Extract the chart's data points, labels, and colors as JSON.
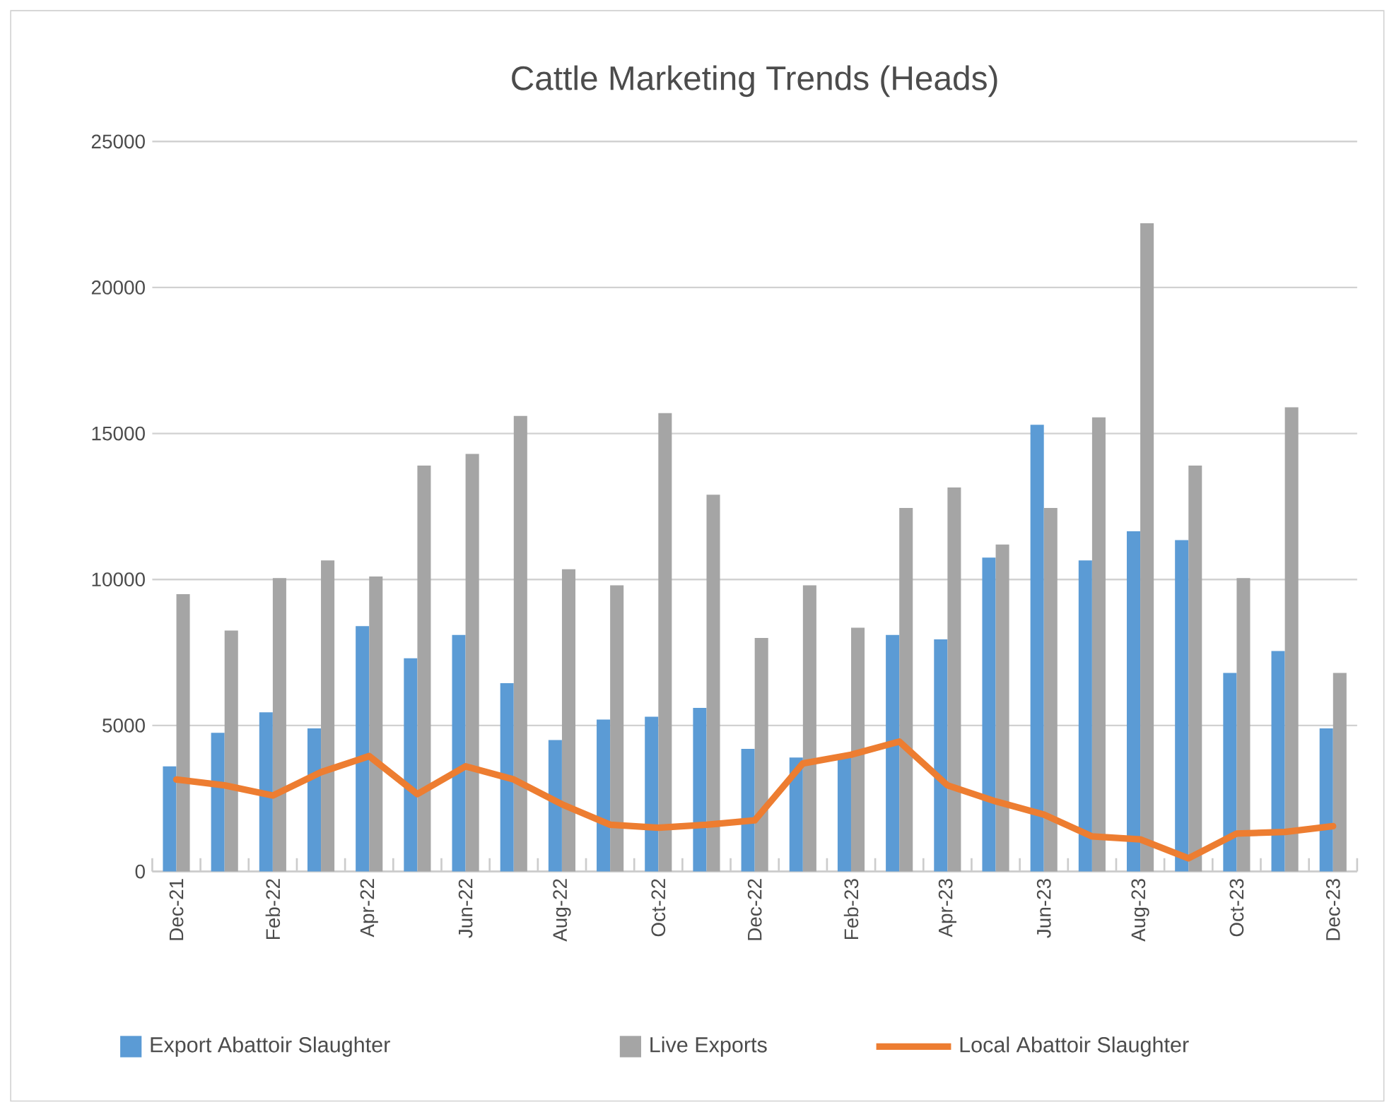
{
  "chart_data": {
    "type": "bar",
    "title": "Cattle Marketing Trends (Heads)",
    "categories": [
      "Dec-21",
      null,
      "Feb-22",
      null,
      "Apr-22",
      null,
      "Jun-22",
      null,
      "Aug-22",
      null,
      "Oct-22",
      null,
      "Dec-22",
      null,
      "Feb-23",
      null,
      "Apr-23",
      null,
      "Jun-23",
      null,
      "Aug-23",
      null,
      "Oct-23",
      null,
      "Dec-23"
    ],
    "series": [
      {
        "name": "Export Abattoir Slaughter",
        "color": "#5b9bd5",
        "values": [
          3600,
          4750,
          5450,
          4900,
          8400,
          7300,
          8100,
          6450,
          4500,
          5200,
          5300,
          5600,
          4200,
          3900,
          3950,
          8100,
          7950,
          10750,
          15300,
          10650,
          11650,
          11350,
          6800,
          7550,
          4900
        ]
      },
      {
        "name": "Live Exports",
        "color": "#a5a5a5",
        "values": [
          9500,
          8250,
          10050,
          10650,
          10100,
          13900,
          14300,
          15600,
          10350,
          9800,
          15700,
          12900,
          8000,
          9800,
          8350,
          12450,
          13150,
          11200,
          12450,
          15550,
          22200,
          13900,
          10050,
          15900,
          6800
        ]
      },
      {
        "name": "Local Abattoir Slaughter",
        "type": "line",
        "color": "#ed7d31",
        "values": [
          3150,
          2950,
          2600,
          3400,
          3950,
          2650,
          3600,
          3150,
          2300,
          1600,
          1500,
          1600,
          1750,
          3700,
          4000,
          4450,
          2950,
          2400,
          1950,
          1200,
          1100,
          450,
          1300,
          1350,
          1550
        ]
      }
    ],
    "ylim": [
      0,
      25000
    ],
    "yticks": [
      0,
      5000,
      10000,
      15000,
      20000,
      25000
    ],
    "grid": "y",
    "legend": "bottom",
    "marker": "none",
    "line_style": "solid"
  }
}
